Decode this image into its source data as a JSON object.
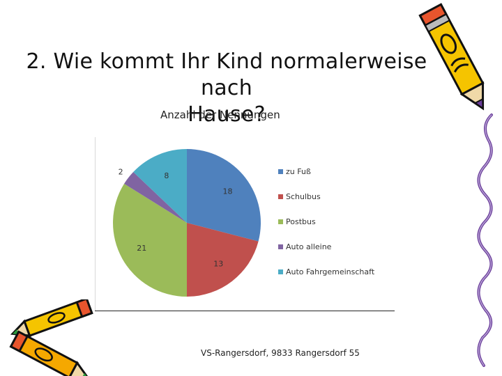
{
  "slide": {
    "title_line1": "2. Wie kommt Ihr Kind normalerweise nach",
    "title_line2": "Hause?",
    "footer": "VS-Rangersdorf, 9833 Rangersdorf 55"
  },
  "chart_data": {
    "type": "pie",
    "title": "Anzahl der Nennungen",
    "categories": [
      "zu Fuß",
      "Schulbus",
      "Postbus",
      "Auto alleine",
      "Auto Fahrgemeinschaft"
    ],
    "values": [
      18,
      13,
      21,
      2,
      8
    ],
    "colors": [
      "#4f81bd",
      "#c0504d",
      "#9bbb59",
      "#8064a2",
      "#4bacc6"
    ],
    "legend_position": "right",
    "start_angle_deg": 0,
    "direction": "clockwise"
  },
  "decorations": {
    "top_right": "pencil-clipart",
    "right_edge": "squiggle-line-clipart",
    "bottom_left": "pencils-clipart"
  }
}
